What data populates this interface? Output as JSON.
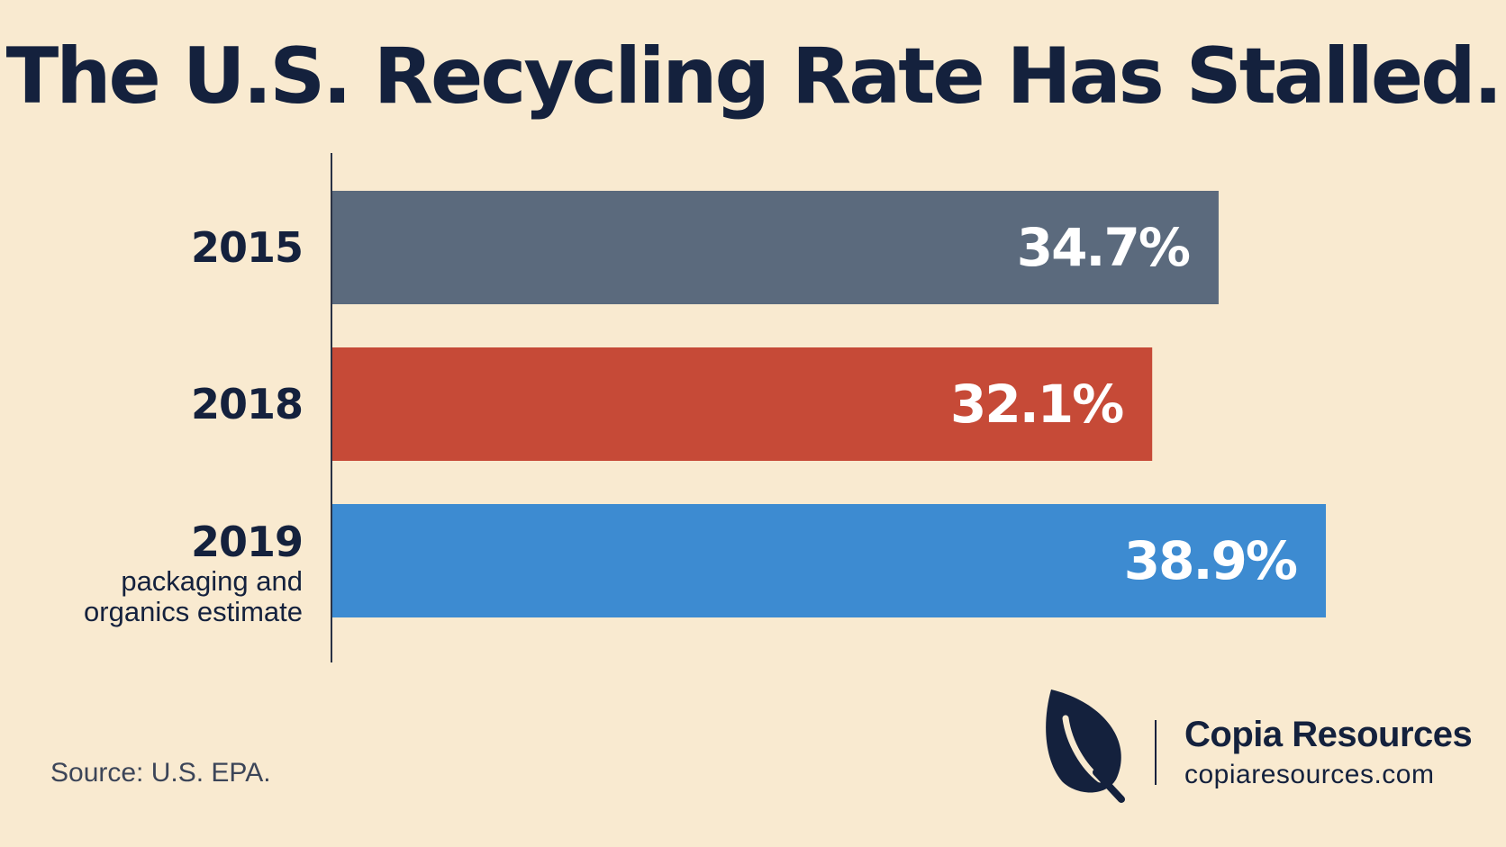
{
  "chart_data": {
    "type": "bar",
    "orientation": "horizontal",
    "title": "The U.S. Recycling Rate Has Stalled.",
    "categories": [
      "2015",
      "2018",
      "2019"
    ],
    "category_notes": [
      "",
      "",
      "packaging and organics estimate"
    ],
    "values": [
      34.7,
      32.1,
      38.9
    ],
    "value_labels": [
      "34.7%",
      "32.1%",
      "38.9%"
    ],
    "bar_colors": [
      "#5b6a7d",
      "#c64a37",
      "#3d8bd1"
    ],
    "xlim": [
      0,
      45
    ],
    "xlabel": "",
    "ylabel": "",
    "grid": false,
    "legend": "none"
  },
  "source": "Source: U.S. EPA.",
  "brand": {
    "name": "Copia Resources",
    "url": "copiaresources.com",
    "icon": "leaf-icon",
    "color": "#14213d"
  },
  "colors": {
    "background": "#f9ead0",
    "text": "#14213d"
  }
}
